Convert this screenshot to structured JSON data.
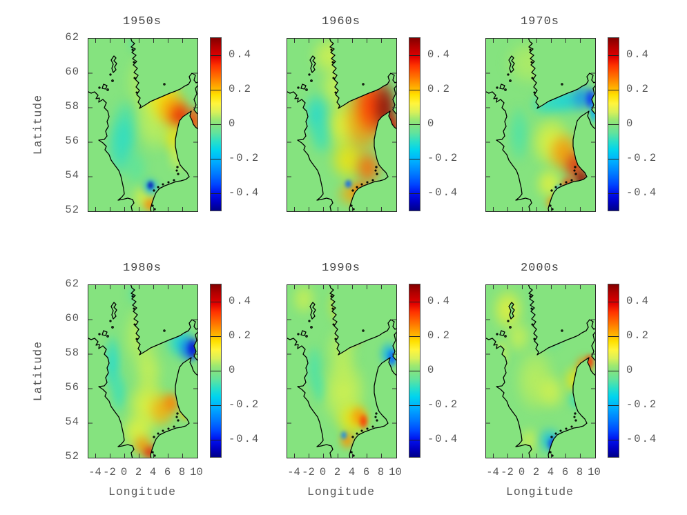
{
  "figure": {
    "background": "#ffffff",
    "text_color": "#565656",
    "title_color": "#454545",
    "frame_color": "#2a2a2a",
    "coast_color": "#000000",
    "land_color": "#85e37f"
  },
  "axes": {
    "x_label": "Longitude",
    "y_label": "Latitude",
    "x_ticks": [
      "-4",
      "-2",
      "0",
      "2",
      "4",
      "6",
      "8",
      "10"
    ],
    "x_tick_values": [
      -4,
      -2,
      0,
      2,
      4,
      6,
      8,
      10
    ],
    "y_ticks": [
      "62",
      "60",
      "58",
      "56",
      "54",
      "52"
    ],
    "y_tick_values": [
      62,
      60,
      58,
      56,
      54,
      52
    ],
    "x_range": [
      -5,
      10.05
    ],
    "y_range": [
      52,
      62
    ]
  },
  "colorbar": {
    "tick_labels": [
      "0.4",
      "0.2",
      "0",
      "-0.2",
      "-0.4"
    ],
    "tick_values": [
      0.4,
      0.2,
      0,
      -0.2,
      -0.4
    ],
    "range": [
      -0.5,
      0.5
    ],
    "colormap": "jet"
  },
  "chart_data": {
    "type": "heatmap",
    "subtype": "geographic anomaly maps, 2x3 grid of decades",
    "region": "North Sea, 52-62N latitude, about -5 to 10E longitude",
    "anomaly_scale": [
      -0.5,
      0.5
    ],
    "panels": [
      {
        "title": "1950s",
        "summary": "Warm anomaly +0.3 to +0.45 in NE North Sea off southern Norway reaching the Skagerrak; weak cool -0.1 in western/central North Sea; small strong cold spot -0.45 and warm +0.3 near the German Bight coast; cool patch at top edge.",
        "blobs": [
          [
            52,
            2,
            16,
            7,
            -0.13
          ],
          [
            34,
            50,
            14,
            16,
            -0.1
          ],
          [
            30,
            63,
            15,
            18,
            -0.12
          ],
          [
            44,
            75,
            12,
            12,
            -0.06
          ],
          [
            58,
            25,
            26,
            20,
            0.1
          ],
          [
            62,
            45,
            22,
            22,
            0.12
          ],
          [
            70,
            35,
            18,
            14,
            0.2
          ],
          [
            78,
            42,
            16,
            12,
            0.3
          ],
          [
            85,
            45,
            12,
            9,
            0.42
          ],
          [
            97,
            48,
            7,
            10,
            0.38
          ],
          [
            80,
            58,
            12,
            10,
            0.2
          ],
          [
            82,
            68,
            10,
            10,
            0.12
          ],
          [
            52,
            92,
            13,
            8,
            0.15
          ],
          [
            57,
            96,
            8,
            5,
            0.32
          ],
          [
            57,
            86,
            8,
            6,
            -0.2
          ],
          [
            57,
            85,
            4,
            3,
            -0.45
          ]
        ]
      },
      {
        "title": "1960s",
        "summary": "Strong warm anomaly above +0.45 along the Norwegian Trench and Skagerrak extending down the Danish coast; broad warm band through the central-south North Sea; cool -0.15 off eastern Scotland/England; small cold spot near Elbe mouth.",
        "blobs": [
          [
            40,
            10,
            20,
            12,
            0.14
          ],
          [
            46,
            28,
            16,
            14,
            0.13
          ],
          [
            52,
            50,
            18,
            16,
            0.16
          ],
          [
            56,
            70,
            18,
            13,
            0.2
          ],
          [
            27,
            44,
            13,
            14,
            -0.14
          ],
          [
            31,
            57,
            11,
            11,
            -0.1
          ],
          [
            66,
            20,
            15,
            13,
            0.25
          ],
          [
            70,
            45,
            20,
            26,
            0.3
          ],
          [
            78,
            38,
            16,
            20,
            0.4
          ],
          [
            90,
            40,
            12,
            17,
            0.5
          ],
          [
            96,
            52,
            7,
            10,
            0.45
          ],
          [
            74,
            75,
            14,
            11,
            0.35
          ],
          [
            60,
            90,
            16,
            8,
            0.28
          ],
          [
            68,
            88,
            10,
            6,
            0.35
          ],
          [
            56,
            84,
            4,
            3,
            -0.3
          ]
        ]
      },
      {
        "title": "1970s",
        "summary": "Cool band -0.2 to -0.35 across the Skagerrak near 58.5N; strong warm +0.4 to +0.5 in the SE North Sea and German Bight; weak positive elsewhere in the north.",
        "blobs": [
          [
            40,
            14,
            24,
            14,
            0.08
          ],
          [
            55,
            8,
            14,
            9,
            0.1
          ],
          [
            30,
            55,
            11,
            18,
            -0.08
          ],
          [
            55,
            38,
            16,
            7,
            -0.12
          ],
          [
            72,
            36,
            18,
            8,
            -0.15
          ],
          [
            88,
            34,
            12,
            9,
            -0.25
          ],
          [
            96,
            35,
            6,
            7,
            -0.35
          ],
          [
            98,
            43,
            4,
            7,
            -0.2
          ],
          [
            60,
            60,
            20,
            16,
            0.15
          ],
          [
            72,
            66,
            16,
            13,
            0.3
          ],
          [
            82,
            74,
            12,
            10,
            0.42
          ],
          [
            88,
            81,
            8,
            6,
            0.5
          ],
          [
            75,
            85,
            8,
            6,
            0.4
          ],
          [
            58,
            84,
            13,
            10,
            0.15
          ],
          [
            62,
            95,
            9,
            5,
            0.3
          ],
          [
            66,
            88,
            4,
            4,
            -0.2
          ]
        ]
      },
      {
        "title": "1980s",
        "summary": "Cold anomaly -0.3 to -0.4 in the Skagerrak at the eastern edge; mild warm +0.15 to +0.3 in the southern North Sea with +0.4 at the southern boundary; weak cool along the UK coast and northern edge.",
        "blobs": [
          [
            55,
            5,
            20,
            8,
            -0.13
          ],
          [
            22,
            45,
            9,
            18,
            -0.13
          ],
          [
            28,
            62,
            9,
            13,
            -0.1
          ],
          [
            48,
            30,
            17,
            20,
            0.1
          ],
          [
            55,
            50,
            14,
            14,
            0.12
          ],
          [
            84,
            33,
            13,
            10,
            -0.15
          ],
          [
            92,
            37,
            10,
            9,
            -0.3
          ],
          [
            96,
            37,
            6,
            7,
            -0.42
          ],
          [
            55,
            70,
            20,
            16,
            0.15
          ],
          [
            68,
            72,
            14,
            11,
            0.28
          ],
          [
            76,
            68,
            9,
            7,
            0.32
          ],
          [
            88,
            73,
            6,
            7,
            0.25
          ],
          [
            45,
            85,
            16,
            11,
            0.15
          ],
          [
            50,
            93,
            11,
            7,
            0.3
          ],
          [
            57,
            97,
            9,
            5,
            0.42
          ]
        ]
      },
      {
        "title": "1990s",
        "summary": "Warm plume +0.2 to +0.38 off SW Norway around 60-61N; warm +0.2 to +0.4 in the German Bight; cool -0.2 to -0.3 at the Kattegat entrance on the eastern edge; weak cool off NE England.",
        "blobs": [
          [
            15,
            8,
            12,
            10,
            0.12
          ],
          [
            55,
            12,
            18,
            13,
            0.2
          ],
          [
            60,
            22,
            11,
            14,
            0.3
          ],
          [
            62,
            27,
            7,
            8,
            0.38
          ],
          [
            50,
            38,
            15,
            16,
            0.1
          ],
          [
            25,
            48,
            9,
            15,
            -0.08
          ],
          [
            30,
            60,
            8,
            10,
            -0.08
          ],
          [
            52,
            62,
            22,
            22,
            0.14
          ],
          [
            60,
            78,
            16,
            11,
            0.2
          ],
          [
            66,
            76,
            9,
            7,
            0.3
          ],
          [
            70,
            79,
            5,
            5,
            0.4
          ],
          [
            55,
            90,
            8,
            6,
            0.3
          ],
          [
            93,
            40,
            9,
            8,
            -0.2
          ],
          [
            96,
            42,
            5,
            6,
            -0.3
          ],
          [
            52,
            87,
            4,
            3,
            -0.25
          ]
        ]
      },
      {
        "title": "2000s",
        "summary": "Mostly weak positive anomalies; warm +0.3 to +0.4 at the Skagerrak/NE Danish coast; cold spot -0.38 in the inner German Bight; weak cool tongue from the northern boundary and near the Danish west coast.",
        "blobs": [
          [
            20,
            14,
            15,
            13,
            0.15
          ],
          [
            30,
            30,
            12,
            10,
            0.12
          ],
          [
            14,
            40,
            8,
            10,
            0.1
          ],
          [
            56,
            10,
            14,
            13,
            -0.12
          ],
          [
            60,
            28,
            10,
            10,
            -0.08
          ],
          [
            45,
            55,
            20,
            20,
            0.1
          ],
          [
            60,
            62,
            14,
            11,
            0.13
          ],
          [
            82,
            55,
            12,
            9,
            0.2
          ],
          [
            90,
            47,
            9,
            7,
            0.32
          ],
          [
            95,
            44,
            5,
            5,
            0.4
          ],
          [
            82,
            66,
            8,
            7,
            -0.1
          ],
          [
            40,
            90,
            12,
            8,
            0.12
          ],
          [
            58,
            90,
            12,
            8,
            -0.18
          ],
          [
            62,
            92,
            6,
            5,
            -0.38
          ],
          [
            68,
            97,
            8,
            4,
            -0.25
          ]
        ]
      }
    ]
  }
}
